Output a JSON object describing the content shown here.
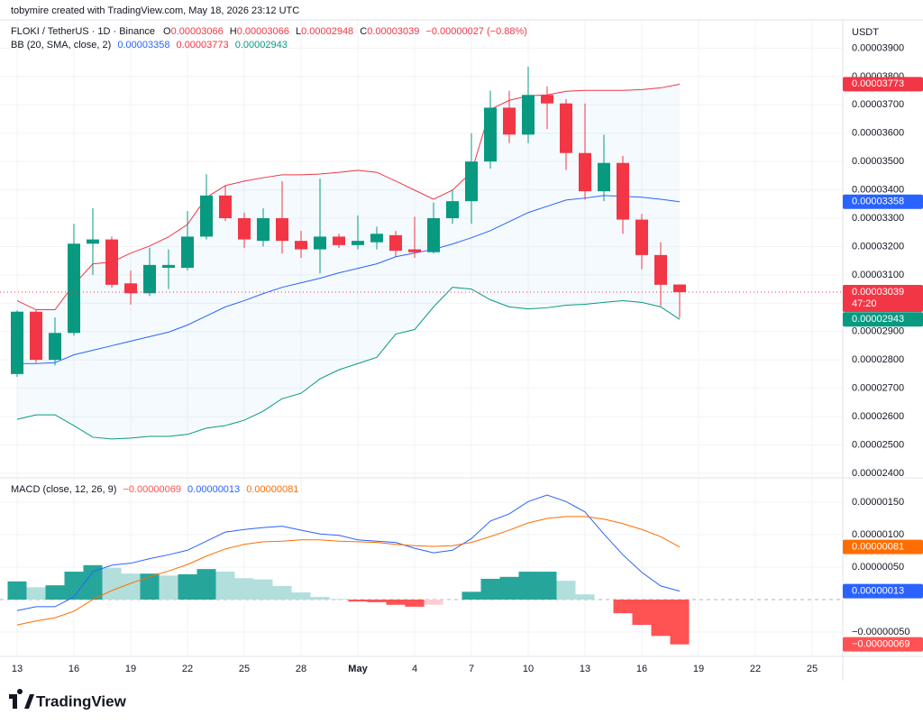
{
  "header": "tobymire created with TradingView.com, May 18, 2026 23:12 UTC",
  "currency": "USDT",
  "logo": "TradingView",
  "chart_data": [
    {
      "type": "candlestick",
      "title": "FLOKI / TetherUS · 1D · Binance",
      "legend_keys": [
        "O",
        "H",
        "L",
        "C"
      ],
      "change": "−0.00000027 (−0.88%)",
      "countdown": "47:20",
      "indicator": "BB (20, SMA, close, 2)",
      "up_color": "#089981",
      "down_color": "#f23645",
      "band_fill": "#2196f3",
      "grid": true,
      "x": [
        "2026-04-13",
        "2026-04-14",
        "2026-04-15",
        "2026-04-16",
        "2026-04-17",
        "2026-04-18",
        "2026-04-19",
        "2026-04-20",
        "2026-04-21",
        "2026-04-22",
        "2026-04-23",
        "2026-04-24",
        "2026-04-25",
        "2026-04-26",
        "2026-04-27",
        "2026-04-28",
        "2026-04-29",
        "2026-04-30",
        "2026-05-01",
        "2026-05-02",
        "2026-05-03",
        "2026-05-04",
        "2026-05-05",
        "2026-05-06",
        "2026-05-07",
        "2026-05-08",
        "2026-05-09",
        "2026-05-10",
        "2026-05-11",
        "2026-05-12",
        "2026-05-13",
        "2026-05-14",
        "2026-05-15",
        "2026-05-16",
        "2026-05-17",
        "2026-05-18"
      ],
      "open": [
        2.75e-05,
        2.97e-05,
        2.8e-05,
        2.895e-05,
        3.21e-05,
        3.225e-05,
        3.07e-05,
        3.035e-05,
        3.125e-05,
        3.125e-05,
        3.235e-05,
        3.38e-05,
        3.3e-05,
        3.22e-05,
        3.3e-05,
        3.22e-05,
        3.19e-05,
        3.235e-05,
        3.205e-05,
        3.215e-05,
        3.24e-05,
        3.19e-05,
        3.18e-05,
        3.3e-05,
        3.36e-05,
        3.5e-05,
        3.69e-05,
        3.595e-05,
        3.735e-05,
        3.705e-05,
        3.53e-05,
        3.395e-05,
        3.495e-05,
        3.295e-05,
        3.17e-05,
        3.066e-05
      ],
      "high": [
        2.975e-05,
        2.978e-05,
        2.95e-05,
        3.28e-05,
        3.335e-05,
        3.235e-05,
        3.115e-05,
        3.195e-05,
        3.19e-05,
        3.325e-05,
        3.455e-05,
        3.415e-05,
        3.32e-05,
        3.335e-05,
        3.43e-05,
        3.255e-05,
        3.44e-05,
        3.245e-05,
        3.31e-05,
        3.27e-05,
        3.255e-05,
        3.305e-05,
        3.355e-05,
        3.4e-05,
        3.6e-05,
        3.75e-05,
        3.75e-05,
        3.835e-05,
        3.765e-05,
        3.72e-05,
        3.705e-05,
        3.595e-05,
        3.52e-05,
        3.315e-05,
        3.215e-05,
        3.066e-05
      ],
      "low": [
        2.74e-05,
        2.79e-05,
        2.78e-05,
        2.885e-05,
        3.1e-05,
        3.055e-05,
        2.995e-05,
        3.025e-05,
        3.05e-05,
        3.115e-05,
        3.225e-05,
        3.29e-05,
        3.195e-05,
        3.2e-05,
        3.175e-05,
        3.16e-05,
        3.105e-05,
        3.195e-05,
        3.19e-05,
        3.19e-05,
        3.165e-05,
        3.16e-05,
        3.175e-05,
        3.28e-05,
        3.28e-05,
        3.475e-05,
        3.565e-05,
        3.565e-05,
        3.615e-05,
        3.47e-05,
        3.365e-05,
        3.36e-05,
        3.245e-05,
        3.12e-05,
        2.99e-05,
        2.948e-05
      ],
      "close": [
        2.97e-05,
        2.8e-05,
        2.895e-05,
        3.21e-05,
        3.225e-05,
        3.065e-05,
        3.035e-05,
        3.135e-05,
        3.135e-05,
        3.235e-05,
        3.38e-05,
        3.3e-05,
        3.225e-05,
        3.3e-05,
        3.22e-05,
        3.19e-05,
        3.235e-05,
        3.205e-05,
        3.22e-05,
        3.245e-05,
        3.185e-05,
        3.18e-05,
        3.3e-05,
        3.36e-05,
        3.5e-05,
        3.69e-05,
        3.595e-05,
        3.735e-05,
        3.705e-05,
        3.53e-05,
        3.395e-05,
        3.495e-05,
        3.295e-05,
        3.17e-05,
        3.065e-05,
        3.039e-05
      ],
      "series": [
        {
          "color": "#2962ff",
          "values": [
            2.787e-05,
            2.787e-05,
            2.79e-05,
            2.818e-05,
            2.834e-05,
            2.85e-05,
            2.866e-05,
            2.882e-05,
            2.898e-05,
            2.923e-05,
            2.955e-05,
            2.987e-05,
            3.009e-05,
            3.034e-05,
            3.056e-05,
            3.072e-05,
            3.088e-05,
            3.107e-05,
            3.123e-05,
            3.139e-05,
            3.164e-05,
            3.177e-05,
            3.19e-05,
            3.209e-05,
            3.231e-05,
            3.256e-05,
            3.288e-05,
            3.32e-05,
            3.342e-05,
            3.364e-05,
            3.371e-05,
            3.38e-05,
            3.377e-05,
            3.374e-05,
            3.367e-05,
            3.358e-05
          ]
        },
        {
          "color": "#f23645",
          "values": [
            3.009e-05,
            2.977e-05,
            2.977e-05,
            3.066e-05,
            3.139e-05,
            3.145e-05,
            3.177e-05,
            3.202e-05,
            3.234e-05,
            3.278e-05,
            3.373e-05,
            3.415e-05,
            3.431e-05,
            3.443e-05,
            3.453e-05,
            3.453e-05,
            3.456e-05,
            3.462e-05,
            3.469e-05,
            3.462e-05,
            3.431e-05,
            3.399e-05,
            3.367e-05,
            3.399e-05,
            3.462e-05,
            3.684e-05,
            3.716e-05,
            3.732e-05,
            3.735e-05,
            3.748e-05,
            3.751e-05,
            3.751e-05,
            3.751e-05,
            3.754e-05,
            3.76e-05,
            3.773e-05
          ]
        },
        {
          "color": "#089981",
          "values": [
            2.59e-05,
            2.606e-05,
            2.606e-05,
            2.568e-05,
            2.527e-05,
            2.521e-05,
            2.524e-05,
            2.53e-05,
            2.53e-05,
            2.537e-05,
            2.559e-05,
            2.568e-05,
            2.587e-05,
            2.619e-05,
            2.663e-05,
            2.682e-05,
            2.733e-05,
            2.765e-05,
            2.787e-05,
            2.809e-05,
            2.891e-05,
            2.907e-05,
            2.987e-05,
            3.056e-05,
            3.05e-05,
            3.012e-05,
            2.987e-05,
            2.98e-05,
            2.984e-05,
            2.993e-05,
            2.996e-05,
            3.003e-05,
            3.009e-05,
            3.003e-05,
            2.987e-05,
            2.943e-05
          ]
        }
      ],
      "xlim": [
        "2026-04-12",
        "2026-05-26"
      ],
      "xticks": [
        {
          "value": "2026-04-13",
          "label": "13"
        },
        {
          "value": "2026-04-16",
          "label": "16"
        },
        {
          "value": "2026-04-19",
          "label": "19"
        },
        {
          "value": "2026-04-22",
          "label": "22"
        },
        {
          "value": "2026-04-25",
          "label": "25"
        },
        {
          "value": "2026-04-28",
          "label": "28"
        },
        {
          "value": "2026-05-01",
          "label": "May"
        },
        {
          "value": "2026-05-04",
          "label": "4"
        },
        {
          "value": "2026-05-07",
          "label": "7"
        },
        {
          "value": "2026-05-10",
          "label": "10"
        },
        {
          "value": "2026-05-13",
          "label": "13"
        },
        {
          "value": "2026-05-16",
          "label": "16"
        },
        {
          "value": "2026-05-19",
          "label": "19"
        },
        {
          "value": "2026-05-22",
          "label": "22"
        },
        {
          "value": "2026-05-25",
          "label": "25"
        }
      ],
      "ylim": [
        2.39e-05,
        4e-05
      ],
      "yticks": [
        {
          "value": 2.4e-05,
          "label": "0.00002400"
        },
        {
          "value": 2.5e-05,
          "label": "0.00002500"
        },
        {
          "value": 2.6e-05,
          "label": "0.00002600"
        },
        {
          "value": 2.7e-05,
          "label": "0.00002700"
        },
        {
          "value": 2.8e-05,
          "label": "0.00002800"
        },
        {
          "value": 2.9e-05,
          "label": "0.00002900"
        },
        {
          "value": 3e-05,
          "label": "0.00003000"
        },
        {
          "value": 3.1e-05,
          "label": "0.00003100"
        },
        {
          "value": 3.2e-05,
          "label": "0.00003200"
        },
        {
          "value": 3.3e-05,
          "label": "0.00003300"
        },
        {
          "value": 3.4e-05,
          "label": "0.00003400"
        },
        {
          "value": 3.5e-05,
          "label": "0.00003500"
        },
        {
          "value": 3.6e-05,
          "label": "0.00003600"
        },
        {
          "value": 3.7e-05,
          "label": "0.00003700"
        },
        {
          "value": 3.8e-05,
          "label": "0.00003800"
        },
        {
          "value": 3.9e-05,
          "label": "0.00003900"
        }
      ]
    },
    {
      "type": "macd",
      "title": "MACD (close, 12, 26, 9)",
      "grid": true,
      "histogram": {
        "colors": [
          "#26a69a",
          "#b2dfdb",
          "#ff5252",
          "#ffcdd2"
        ],
        "last_label": "−0.00000069",
        "values": [
          2.8e-07,
          1.9e-07,
          2.2e-07,
          4.3e-07,
          5.3e-07,
          4.9e-07,
          4e-07,
          4e-07,
          3.7e-07,
          3.9e-07,
          4.7e-07,
          4.3e-07,
          3.3e-07,
          3.1e-07,
          2.1e-07,
          1.1e-07,
          4e-08,
          1e-08,
          -3e-08,
          -4e-08,
          -8e-08,
          -1.1e-07,
          -8e-08,
          0,
          1.2e-07,
          3.2e-07,
          3.5e-07,
          4.3e-07,
          4.3e-07,
          2.9e-07,
          8e-08,
          0,
          -2.1e-07,
          -3.9e-07,
          -5.6e-07,
          -6.9e-07
        ]
      },
      "series": [
        {
          "color": "#2962ff",
          "last_label": "0.00000013",
          "values": [
            -1.7e-07,
            -1.1e-07,
            -1.1e-07,
            4e-08,
            4.3e-07,
            5.3e-07,
            5.6e-07,
            6.3e-07,
            6.9e-07,
            7.6e-07,
            9e-07,
            1.04e-06,
            1.08e-06,
            1.11e-06,
            1.13e-06,
            1.07e-06,
            1.01e-06,
            9.9e-07,
            9.2e-07,
            9e-07,
            8.8e-07,
            7.9e-07,
            7.2e-07,
            7.6e-07,
            9.4e-07,
            1.21e-06,
            1.32e-06,
            1.51e-06,
            1.61e-06,
            1.51e-06,
            1.35e-06,
            1.01e-06,
            6.9e-07,
            4.2e-07,
            2.1e-07,
            1.3e-07
          ]
        },
        {
          "color": "#ff6d00",
          "last_label": "0.00000081",
          "values": [
            -3.9e-07,
            -3.3e-07,
            -2.8e-07,
            -1.8e-07,
            0,
            1.4e-07,
            2.5e-07,
            3.5e-07,
            4.4e-07,
            5.4e-07,
            6.7e-07,
            7.8e-07,
            8.5e-07,
            8.9e-07,
            9e-07,
            9.2e-07,
            9.2e-07,
            9e-07,
            8.9e-07,
            8.8e-07,
            8.5e-07,
            8.3e-07,
            8.2e-07,
            8.3e-07,
            8.8e-07,
            9.7e-07,
            1.07e-06,
            1.18e-06,
            1.25e-06,
            1.28e-06,
            1.28e-06,
            1.24e-06,
            1.17e-06,
            1.08e-06,
            9.7e-07,
            8.1e-07
          ]
        }
      ],
      "ylim": [
        -8.75e-07,
        1.875e-06
      ],
      "yticks": [
        {
          "value": -5e-07,
          "label": "−0.00000050"
        },
        {
          "value": 5e-07,
          "label": "0.00000050"
        },
        {
          "value": 1e-06,
          "label": "0.00000100"
        },
        {
          "value": 1.5e-06,
          "label": "0.00000150"
        }
      ]
    }
  ]
}
